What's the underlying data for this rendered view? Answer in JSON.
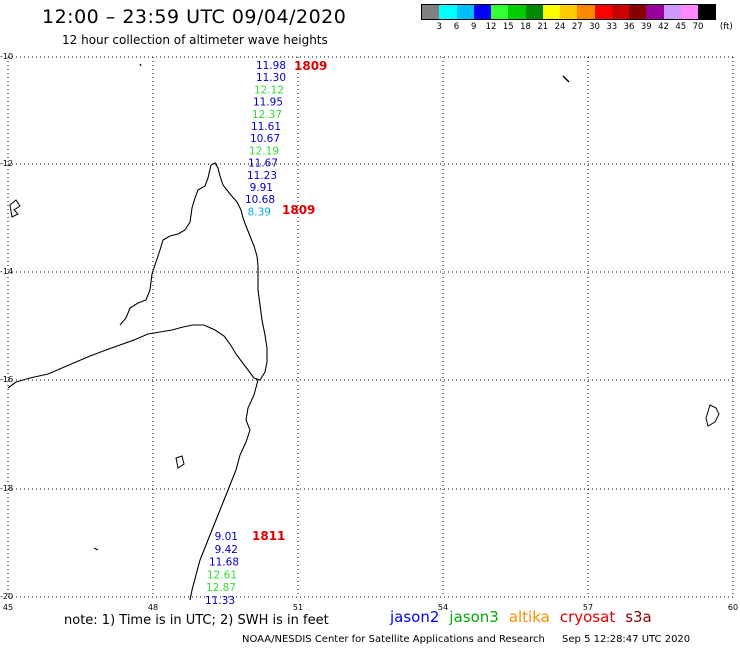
{
  "header": {
    "title": "12:00 – 23:59 UTC 09/04/2020",
    "subtitle": "12 hour collection of altimeter wave heights"
  },
  "legend": {
    "unit": "(ft)",
    "bins": [
      {
        "label": "3",
        "color": "#808080"
      },
      {
        "label": "6",
        "color": "#00ffff"
      },
      {
        "label": "9",
        "color": "#00bfff"
      },
      {
        "label": "12",
        "color": "#0000ff"
      },
      {
        "label": "15",
        "color": "#33ff33"
      },
      {
        "label": "18",
        "color": "#00cc00"
      },
      {
        "label": "21",
        "color": "#008800"
      },
      {
        "label": "24",
        "color": "#ffff00"
      },
      {
        "label": "27",
        "color": "#ffcc00"
      },
      {
        "label": "30",
        "color": "#ff8800"
      },
      {
        "label": "33",
        "color": "#ff0000"
      },
      {
        "label": "36",
        "color": "#cc0000"
      },
      {
        "label": "39",
        "color": "#880000"
      },
      {
        "label": "42",
        "color": "#990099"
      },
      {
        "label": "45",
        "color": "#cc99ff"
      },
      {
        "label": "70",
        "color": "#ff88ff"
      },
      {
        "label": "",
        "color": "#000000"
      }
    ]
  },
  "axes": {
    "lat_ticks": [
      "-10",
      "-12",
      "-14",
      "-16",
      "-18",
      "-20"
    ],
    "lon_ticks": [
      "45",
      "48",
      "51",
      "54",
      "57",
      "60"
    ]
  },
  "map": {
    "tracks": [
      {
        "time_label": "1809",
        "time_label_extra": "1809",
        "points": [
          {
            "value": "11.98",
            "color": "#0000cc"
          },
          {
            "value": "11.30",
            "color": "#0000cc"
          },
          {
            "value": "12.12",
            "color": "#33dd33"
          },
          {
            "value": "11.95",
            "color": "#0000cc"
          },
          {
            "value": "12.37",
            "color": "#33dd33"
          },
          {
            "value": "11.61",
            "color": "#0000cc"
          },
          {
            "value": "10.67",
            "color": "#0000cc"
          },
          {
            "value": "12.19",
            "color": "#33dd33"
          },
          {
            "value": "11.67",
            "color": "#0000cc"
          },
          {
            "value": "11.23",
            "color": "#0000cc"
          },
          {
            "value": "9.91",
            "color": "#0000cc"
          },
          {
            "value": "10.68",
            "color": "#0000cc"
          },
          {
            "value": "8.39",
            "color": "#00aaff"
          }
        ]
      },
      {
        "time_label": "1811",
        "points": [
          {
            "value": "9.01",
            "color": "#0000cc"
          },
          {
            "value": "9.42",
            "color": "#0000cc"
          },
          {
            "value": "11.68",
            "color": "#0000cc"
          },
          {
            "value": "12.61",
            "color": "#33dd33"
          },
          {
            "value": "12.87",
            "color": "#33dd33"
          },
          {
            "value": "11.33",
            "color": "#0000cc"
          }
        ]
      }
    ]
  },
  "note": "note:  1) Time is in UTC;  2) SWH is in feet",
  "satellites": [
    {
      "name": "jason2",
      "color": "#0000ff"
    },
    {
      "name": "jason3",
      "color": "#00aa00"
    },
    {
      "name": "altika",
      "color": "#ff8800"
    },
    {
      "name": "cryosat",
      "color": "#dd0000"
    },
    {
      "name": "s3a",
      "color": "#880000"
    }
  ],
  "footer": {
    "credit": "NOAA/NESDIS Center for Satellite Applications and Research",
    "timestamp": "Sep  5 12:28:47 UTC 2020"
  }
}
